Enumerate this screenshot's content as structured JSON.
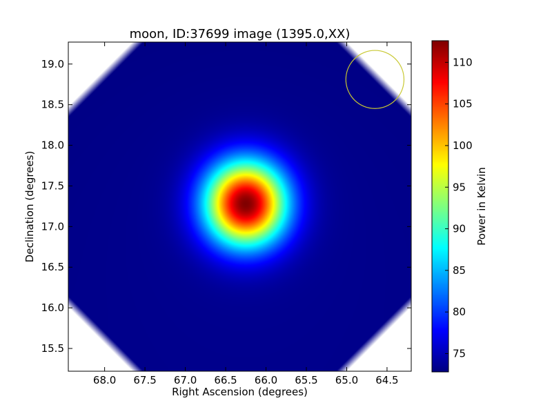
{
  "chart_data": {
    "type": "heatmap",
    "title": "moon, ID:37699 image (1395.0,XX)",
    "xlabel": "Right Ascension (degrees)",
    "ylabel": "Declination (degrees)",
    "xlim": [
      68.45,
      64.2
    ],
    "ylim": [
      15.22,
      19.27
    ],
    "x_ticks": [
      68.0,
      67.5,
      67.0,
      66.5,
      66.0,
      65.5,
      65.0,
      64.5
    ],
    "x_tick_labels": [
      "68.0",
      "67.5",
      "67.0",
      "66.5",
      "66.0",
      "65.5",
      "65.0",
      "64.5"
    ],
    "y_ticks": [
      15.5,
      16.0,
      16.5,
      17.0,
      17.5,
      18.0,
      18.5,
      19.0
    ],
    "y_tick_labels": [
      "15.5",
      "16.0",
      "16.5",
      "17.0",
      "17.5",
      "18.0",
      "18.5",
      "19.0"
    ],
    "colormap": "jet",
    "colorbar": {
      "label": "Power in Kelvin",
      "vmin": 72.8,
      "vmax": 112.6,
      "ticks": [
        75,
        80,
        85,
        90,
        95,
        100,
        105,
        110
      ],
      "tick_labels": [
        "75",
        "80",
        "85",
        "90",
        "95",
        "100",
        "105",
        "110"
      ]
    },
    "source": {
      "ra": 66.25,
      "dec": 17.28,
      "peak": 112.3,
      "background": 73.2
    },
    "beam_marker": {
      "ra": 64.65,
      "dec": 18.81,
      "radius_deg": 0.36,
      "color": "#c8c832"
    },
    "masked_corners": true,
    "grid": false
  }
}
